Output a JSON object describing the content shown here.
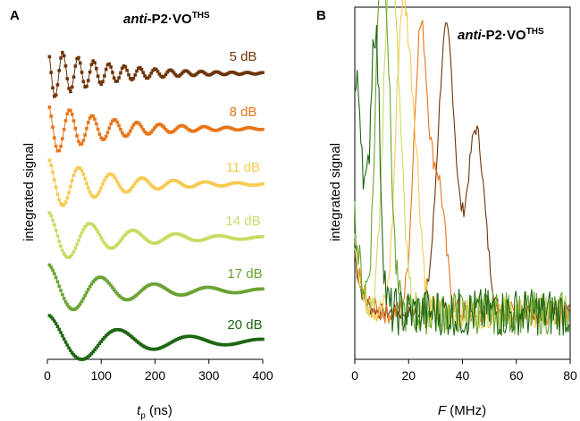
{
  "chart_data": [
    {
      "panel": "A",
      "type": "scatter",
      "title": "",
      "compound": {
        "prefix": "anti",
        "mid": "-P2·VO",
        "sup": "THS"
      },
      "xlabel": {
        "main": "t",
        "sub": "p",
        "unit": " (ns)"
      },
      "ylabel": "integrated signal",
      "xlim": [
        0,
        400
      ],
      "xticks": [
        "0",
        "100",
        "200",
        "300",
        "400"
      ],
      "grid": false,
      "series": [
        {
          "name": "5 dB",
          "color": "#6e3409",
          "freq_MHz": 35,
          "decay_ns": 110,
          "amp": 1.0,
          "offset": 5
        },
        {
          "name": "8 dB",
          "color": "#e87418",
          "freq_MHz": 24,
          "decay_ns": 115,
          "amp": 1.0,
          "offset": 4
        },
        {
          "name": "11 dB",
          "color": "#f7cb50",
          "freq_MHz": 17,
          "decay_ns": 120,
          "amp": 1.0,
          "offset": 3
        },
        {
          "name": "14 dB",
          "color": "#c8dc63",
          "freq_MHz": 12.5,
          "decay_ns": 125,
          "amp": 1.0,
          "offset": 2
        },
        {
          "name": "17 dB",
          "color": "#6aa332",
          "freq_MHz": 10,
          "decay_ns": 140,
          "amp": 1.0,
          "offset": 1
        },
        {
          "name": "20 dB",
          "color": "#1e6612",
          "freq_MHz": 7.5,
          "decay_ns": 160,
          "amp": 1.0,
          "offset": 0
        }
      ]
    },
    {
      "panel": "B",
      "type": "line",
      "title": "",
      "compound": {
        "prefix": "anti",
        "mid": "-P2·VO",
        "sup": "THS"
      },
      "xlabel": {
        "main": "F",
        "unit": " (MHz)"
      },
      "ylabel": "integrated signal",
      "xlim": [
        0,
        80
      ],
      "xticks": [
        "0",
        "20",
        "40",
        "60",
        "80"
      ],
      "grid": false,
      "series": [
        {
          "name": "5 dB",
          "color": "#6e3409",
          "peaks": [
            [
              34,
              1.0
            ],
            [
              45,
              0.65
            ]
          ],
          "width": 3.2
        },
        {
          "name": "8 dB",
          "color": "#e87418",
          "peaks": [
            [
              24.5,
              1.0
            ],
            [
              31,
              0.45
            ]
          ],
          "width": 2.6
        },
        {
          "name": "11 dB",
          "color": "#f7cb50",
          "peaks": [
            [
              17.5,
              1.0
            ],
            [
              22,
              0.55
            ]
          ],
          "width": 2.4
        },
        {
          "name": "14 dB",
          "color": "#c8dc63",
          "peaks": [
            [
              12.5,
              1.0
            ],
            [
              16,
              0.6
            ]
          ],
          "width": 2.2
        },
        {
          "name": "17 dB",
          "color": "#6aa332",
          "peaks": [
            [
              9.5,
              1.0
            ],
            [
              12,
              0.6
            ]
          ],
          "width": 2.0
        },
        {
          "name": "20 dB",
          "color": "#1e6612",
          "peaks": [
            [
              7.5,
              1.0
            ],
            [
              1.5,
              0.55
            ]
          ],
          "width": 1.8
        }
      ]
    }
  ]
}
